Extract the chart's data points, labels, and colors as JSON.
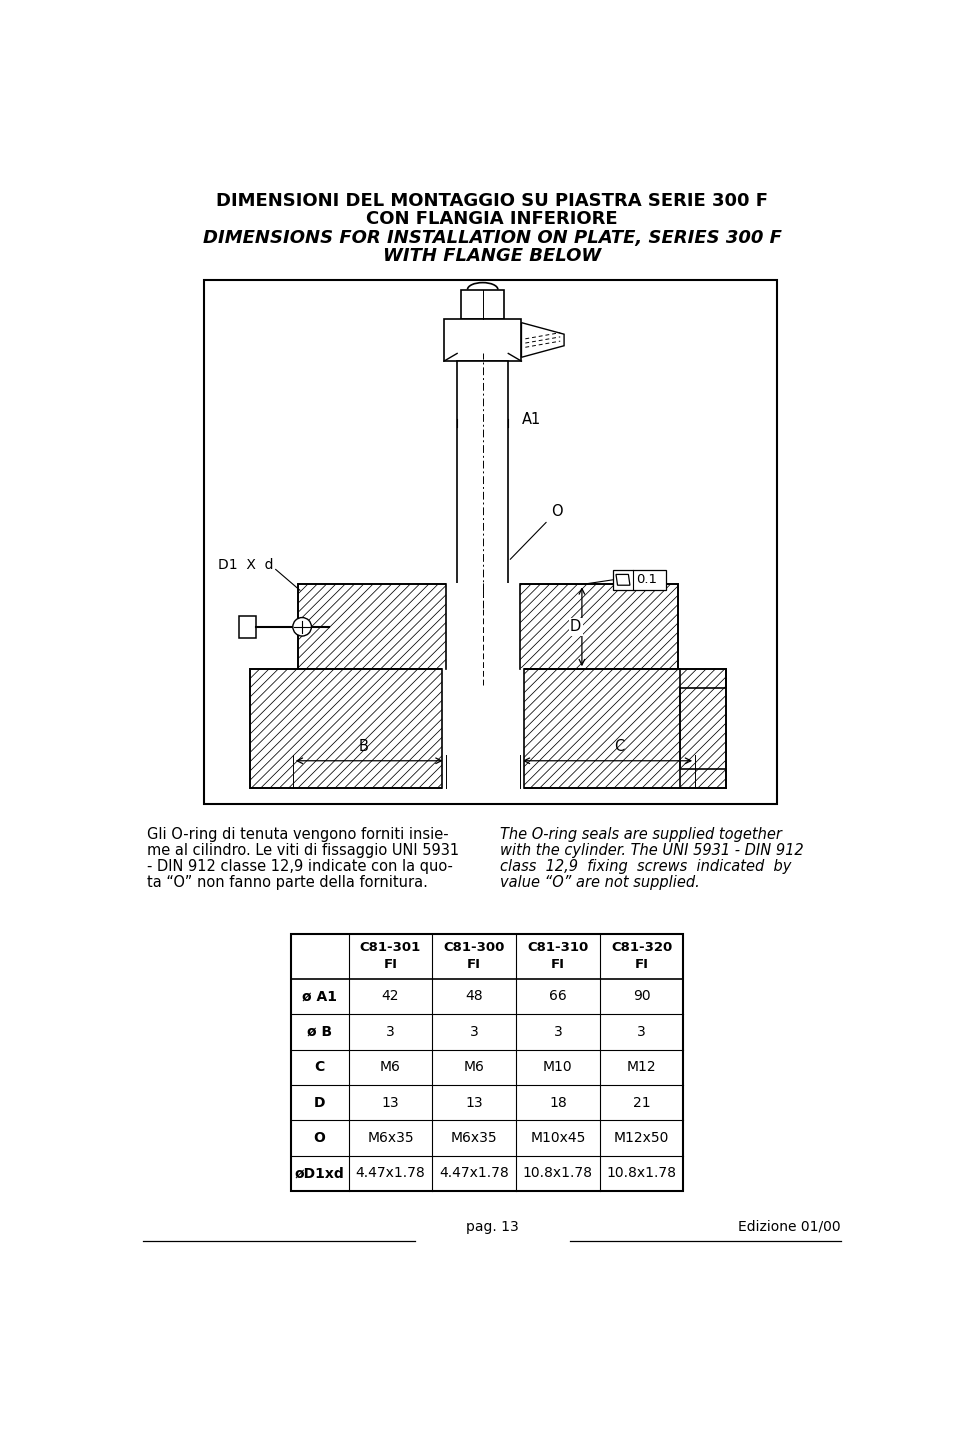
{
  "title_line1": "DIMENSIONI DEL MONTAGGIO SU PIASTRA SERIE 300 F",
  "title_line2": "CON FLANGIA INFERIORE",
  "title_line3": "DIMENSIONS FOR INSTALLATION ON PLATE, SERIES 300 F",
  "title_line4": "WITH FLANGE BELOW",
  "text_left_line1": "Gli O-ring di tenuta vengono forniti insie-",
  "text_left_line2": "me al cilindro. Le viti di fissaggio UNI 5931",
  "text_left_line3": "- DIN 912 classe 12,9 indicate con la quo-",
  "text_left_line4": "ta “O” non fanno parte della fornitura.",
  "text_right_line1": "The O-ring seals are supplied together",
  "text_right_line2": "with the cylinder. The UNI 5931 - DIN 912",
  "text_right_line3": "class  12,9  fixing  screws  indicated  by",
  "text_right_line4": "value “O” are not supplied.",
  "footer_left": "pag. 13",
  "footer_right": "Edizione 01/00",
  "table_headers": [
    "",
    "C81-301\nFI",
    "C81-300\nFI",
    "C81-310\nFI",
    "C81-320\nFI"
  ],
  "table_rows": [
    [
      "ø A1",
      "42",
      "48",
      "66",
      "90"
    ],
    [
      "ø B",
      "3",
      "3",
      "3",
      "3"
    ],
    [
      "C",
      "M6",
      "M6",
      "M10",
      "M12"
    ],
    [
      "D",
      "13",
      "13",
      "18",
      "21"
    ],
    [
      "O",
      "M6x35",
      "M6x35",
      "M10x45",
      "M12x50"
    ],
    [
      "øD1xd",
      "4.47x1.78",
      "4.47x1.78",
      "10.8x1.78",
      "10.8x1.78"
    ]
  ],
  "bg_color": "#ffffff",
  "text_color": "#000000"
}
